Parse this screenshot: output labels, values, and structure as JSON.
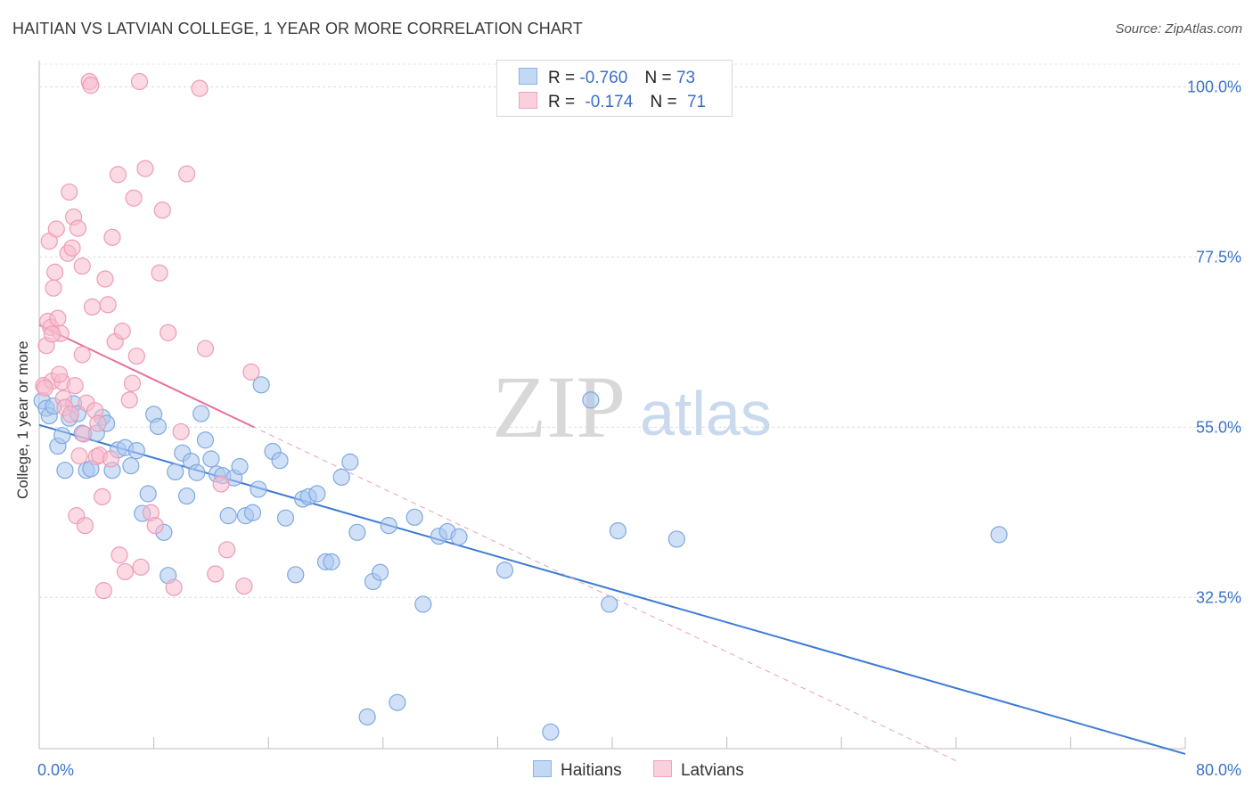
{
  "header": {
    "title": "HAITIAN VS LATVIAN COLLEGE, 1 YEAR OR MORE CORRELATION CHART",
    "source": "Source: ZipAtlas.com"
  },
  "watermark": {
    "zip": "ZIP",
    "atlas": "atlas"
  },
  "legend": {
    "rows": [
      {
        "r_label": "R =",
        "r_value": "-0.760",
        "n_label": "N =",
        "n_value": "73",
        "color": "#a9c6ee"
      },
      {
        "r_label": "R =",
        "r_value": "-0.174",
        "n_label": "N =",
        "n_value": "71",
        "color": "#f5b8cb"
      }
    ]
  },
  "bottom_legend": {
    "haitians": "Haitians",
    "latvians": "Latvians"
  },
  "chart_data": {
    "type": "scatter",
    "ylabel": "College, 1 year or more",
    "xlim": [
      0,
      80
    ],
    "ylim": [
      12.5,
      103
    ],
    "x_tick_labels": [
      "0.0%",
      "80.0%"
    ],
    "y_ticks": [
      {
        "value": 100,
        "label": "100.0%"
      },
      {
        "value": 77.5,
        "label": "77.5%"
      },
      {
        "value": 55,
        "label": "55.0%"
      },
      {
        "value": 32.5,
        "label": "32.5%"
      }
    ],
    "colors": {
      "haitians": "#3d7bd4",
      "latvians": "#e9709a",
      "haitians_fill": "#aac8f0",
      "latvians_fill": "#f7bccd"
    },
    "series": [
      {
        "name": "Haitians",
        "trend": {
          "x": [
            0,
            80
          ],
          "y": [
            55.3,
            11.8
          ]
        },
        "x": [
          0.2,
          0.5,
          0.7,
          1.0,
          1.3,
          1.6,
          1.8,
          2.1,
          2.4,
          2.7,
          3.0,
          3.3,
          3.6,
          4.0,
          4.4,
          4.7,
          5.1,
          5.5,
          6.0,
          6.4,
          6.8,
          7.2,
          7.6,
          8.0,
          8.3,
          8.7,
          9.0,
          9.5,
          10.0,
          10.3,
          10.6,
          11.0,
          11.3,
          11.6,
          12.0,
          12.4,
          12.8,
          13.2,
          13.6,
          14.0,
          14.4,
          14.9,
          15.3,
          15.5,
          16.3,
          16.8,
          17.2,
          17.9,
          18.4,
          18.8,
          19.4,
          20.0,
          20.4,
          21.1,
          21.7,
          22.2,
          22.9,
          23.3,
          23.8,
          24.4,
          25.0,
          26.2,
          26.8,
          27.9,
          28.5,
          29.3,
          32.5,
          35.7,
          38.5,
          39.8,
          40.4,
          44.5,
          67.0
        ],
        "y": [
          58.5,
          57.5,
          56.5,
          57.8,
          52.5,
          53.9,
          49.3,
          56.2,
          58.1,
          56.8,
          54.2,
          49.3,
          49.5,
          54.2,
          56.3,
          55.5,
          49.3,
          52.0,
          52.3,
          49.9,
          51.9,
          43.6,
          46.2,
          56.7,
          55.1,
          41.1,
          35.4,
          49.1,
          51.6,
          45.9,
          50.5,
          49.0,
          56.8,
          53.3,
          50.8,
          48.8,
          48.6,
          43.3,
          48.3,
          49.8,
          43.3,
          43.7,
          46.8,
          60.6,
          51.8,
          50.6,
          43.0,
          35.5,
          45.5,
          45.8,
          46.2,
          37.2,
          37.2,
          48.4,
          50.4,
          41.1,
          16.7,
          34.6,
          35.8,
          42.0,
          18.6,
          43.1,
          31.6,
          40.6,
          41.2,
          40.5,
          36.1,
          14.7,
          58.6,
          31.6,
          41.3,
          40.2,
          40.8
        ]
      },
      {
        "name": "Latvians",
        "trend": {
          "x": [
            0,
            15
          ],
          "y": [
            68.5,
            55.0
          ]
        },
        "trend_dashed": {
          "x": [
            0,
            64
          ],
          "y": [
            68.5,
            10.9
          ]
        },
        "x": [
          0.3,
          0.5,
          0.6,
          0.7,
          0.8,
          0.9,
          1.0,
          1.2,
          1.3,
          1.5,
          1.6,
          1.7,
          1.8,
          2.0,
          2.1,
          2.2,
          2.4,
          2.5,
          2.6,
          2.8,
          3.0,
          3.1,
          3.2,
          3.3,
          3.5,
          3.7,
          3.9,
          4.0,
          4.2,
          4.4,
          4.6,
          4.8,
          5.0,
          5.1,
          5.3,
          5.6,
          5.8,
          6.0,
          6.3,
          6.5,
          6.8,
          7.0,
          7.4,
          7.8,
          8.1,
          8.4,
          9.0,
          9.4,
          10.3,
          11.2,
          11.6,
          12.3,
          13.1,
          14.3,
          14.8,
          2.7,
          5.5,
          4.5,
          6.6,
          1.1,
          8.6,
          3.6,
          1.4,
          2.3,
          0.4,
          4.1,
          7.1,
          9.9,
          0.9,
          3.0,
          12.7
        ],
        "y": [
          60.5,
          65.8,
          69.0,
          79.6,
          68.2,
          61.1,
          73.4,
          81.2,
          69.4,
          67.4,
          61.0,
          58.8,
          57.6,
          78.0,
          86.1,
          56.7,
          82.8,
          60.5,
          43.3,
          51.2,
          76.3,
          54.1,
          42.0,
          58.2,
          100.7,
          70.9,
          57.2,
          51.1,
          51.3,
          45.8,
          74.6,
          71.2,
          50.8,
          80.1,
          66.3,
          38.1,
          67.7,
          35.9,
          58.6,
          60.8,
          64.4,
          100.7,
          89.2,
          43.7,
          42.0,
          75.4,
          67.5,
          33.8,
          88.5,
          99.8,
          65.4,
          35.6,
          38.8,
          34.0,
          62.3,
          81.3,
          88.4,
          33.4,
          85.3,
          75.5,
          83.7,
          100.2,
          62.0,
          78.7,
          60.2,
          55.5,
          36.5,
          54.4,
          67.3,
          64.6,
          47.5
        ]
      }
    ]
  }
}
